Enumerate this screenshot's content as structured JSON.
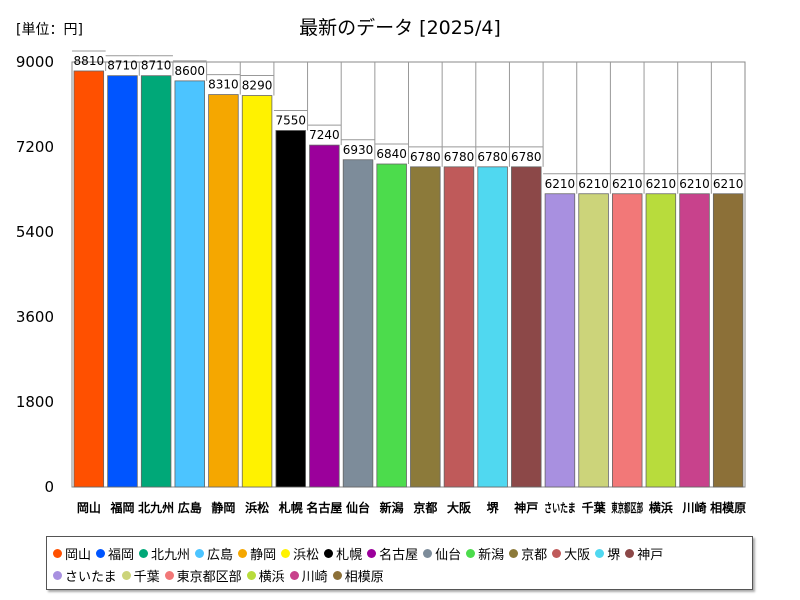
{
  "chart_data": {
    "type": "bar",
    "title": "最新のデータ [2025/4]",
    "unit_label": "[単位：円]",
    "categories": [
      "岡山",
      "福岡",
      "北九州",
      "広島",
      "静岡",
      "浜松",
      "札幌",
      "名古屋",
      "仙台",
      "新潟",
      "京都",
      "大阪",
      "堺",
      "神戸",
      "さいたま",
      "千葉",
      "東京都区部",
      "横浜",
      "川崎",
      "相模原"
    ],
    "values": [
      8810,
      8710,
      8710,
      8600,
      8310,
      8290,
      7550,
      7240,
      6930,
      6840,
      6780,
      6780,
      6780,
      6780,
      6210,
      6210,
      6210,
      6210,
      6210,
      6210
    ],
    "colors": [
      "#ff5000",
      "#0055ff",
      "#00a878",
      "#4cc4ff",
      "#f5a700",
      "#fff200",
      "#000000",
      "#9b009b",
      "#7d8c9a",
      "#4cdc4c",
      "#8c7a3a",
      "#bf5a5a",
      "#50d8f0",
      "#8c4848",
      "#a890e0",
      "#ccd47a",
      "#f27878",
      "#b8dc3c",
      "#c8428c",
      "#8c7038"
    ],
    "yticks": [
      0,
      1800,
      3600,
      5400,
      7200,
      9000
    ],
    "ylim": [
      0,
      9000
    ],
    "grid": false,
    "legend_position": "bottom"
  }
}
